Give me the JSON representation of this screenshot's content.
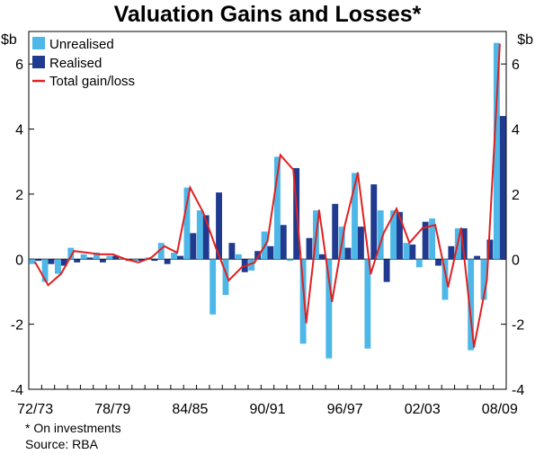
{
  "chart_data": {
    "type": "bar",
    "title": "Valuation Gains and Losses*",
    "ylabel_left": "$b",
    "ylabel_right": "$b",
    "ylim": [
      -4,
      7
    ],
    "yticks": [
      -4,
      -2,
      0,
      2,
      4,
      6
    ],
    "x_tick_labels": [
      "72/73",
      "78/79",
      "84/85",
      "90/91",
      "96/97",
      "02/03",
      "08/09"
    ],
    "categories": [
      "72/73",
      "73/74",
      "74/75",
      "75/76",
      "76/77",
      "77/78",
      "78/79",
      "79/80",
      "80/81",
      "81/82",
      "82/83",
      "83/84",
      "84/85",
      "85/86",
      "86/87",
      "87/88",
      "88/89",
      "89/90",
      "90/91",
      "91/92",
      "92/93",
      "93/94",
      "94/95",
      "95/96",
      "96/97",
      "97/98",
      "98/99",
      "99/00",
      "00/01",
      "01/02",
      "02/03",
      "03/04",
      "04/05",
      "05/06",
      "06/07",
      "07/08",
      "08/09"
    ],
    "series": [
      {
        "name": "Unrealised",
        "color": "#4db8e8",
        "values": [
          -0.15,
          -0.7,
          -0.45,
          0.35,
          0.15,
          0.2,
          0.1,
          0.0,
          -0.05,
          0.05,
          0.5,
          0.2,
          2.2,
          1.5,
          -1.7,
          -1.1,
          0.15,
          -0.35,
          0.85,
          3.15,
          -0.05,
          -2.6,
          1.5,
          -3.05,
          1.0,
          2.65,
          -2.75,
          1.5,
          1.5,
          0.5,
          -0.25,
          1.25,
          -1.25,
          0.95,
          -2.8,
          -1.25,
          6.65
        ]
      },
      {
        "name": "Realised",
        "color": "#1f3a8f",
        "values": [
          -0.05,
          -0.15,
          -0.2,
          -0.1,
          0.05,
          -0.1,
          0.1,
          -0.05,
          -0.05,
          -0.05,
          -0.15,
          0.1,
          0.8,
          1.35,
          2.05,
          0.5,
          -0.4,
          0.25,
          0.4,
          1.05,
          2.8,
          0.65,
          0.15,
          1.7,
          0.35,
          1.0,
          2.3,
          -0.7,
          1.45,
          0.45,
          1.15,
          -0.2,
          0.4,
          0.95,
          0.1,
          0.6,
          4.4
        ]
      },
      {
        "name": "Total gain/loss",
        "color": "#e02020",
        "values": [
          -0.1,
          -0.8,
          -0.45,
          0.25,
          0.2,
          0.15,
          0.15,
          0.0,
          -0.1,
          0.05,
          0.4,
          0.2,
          2.2,
          1.45,
          0.35,
          -0.65,
          -0.25,
          -0.1,
          0.55,
          3.2,
          2.75,
          -1.95,
          1.5,
          -1.3,
          1.05,
          2.65,
          -0.45,
          0.8,
          1.55,
          0.5,
          0.95,
          1.05,
          -0.85,
          0.95,
          -2.7,
          -0.65,
          6.6
        ]
      }
    ],
    "legend_position": "top-left",
    "grid": false
  },
  "footnotes": {
    "note": "* On investments",
    "source": "Source: RBA"
  }
}
